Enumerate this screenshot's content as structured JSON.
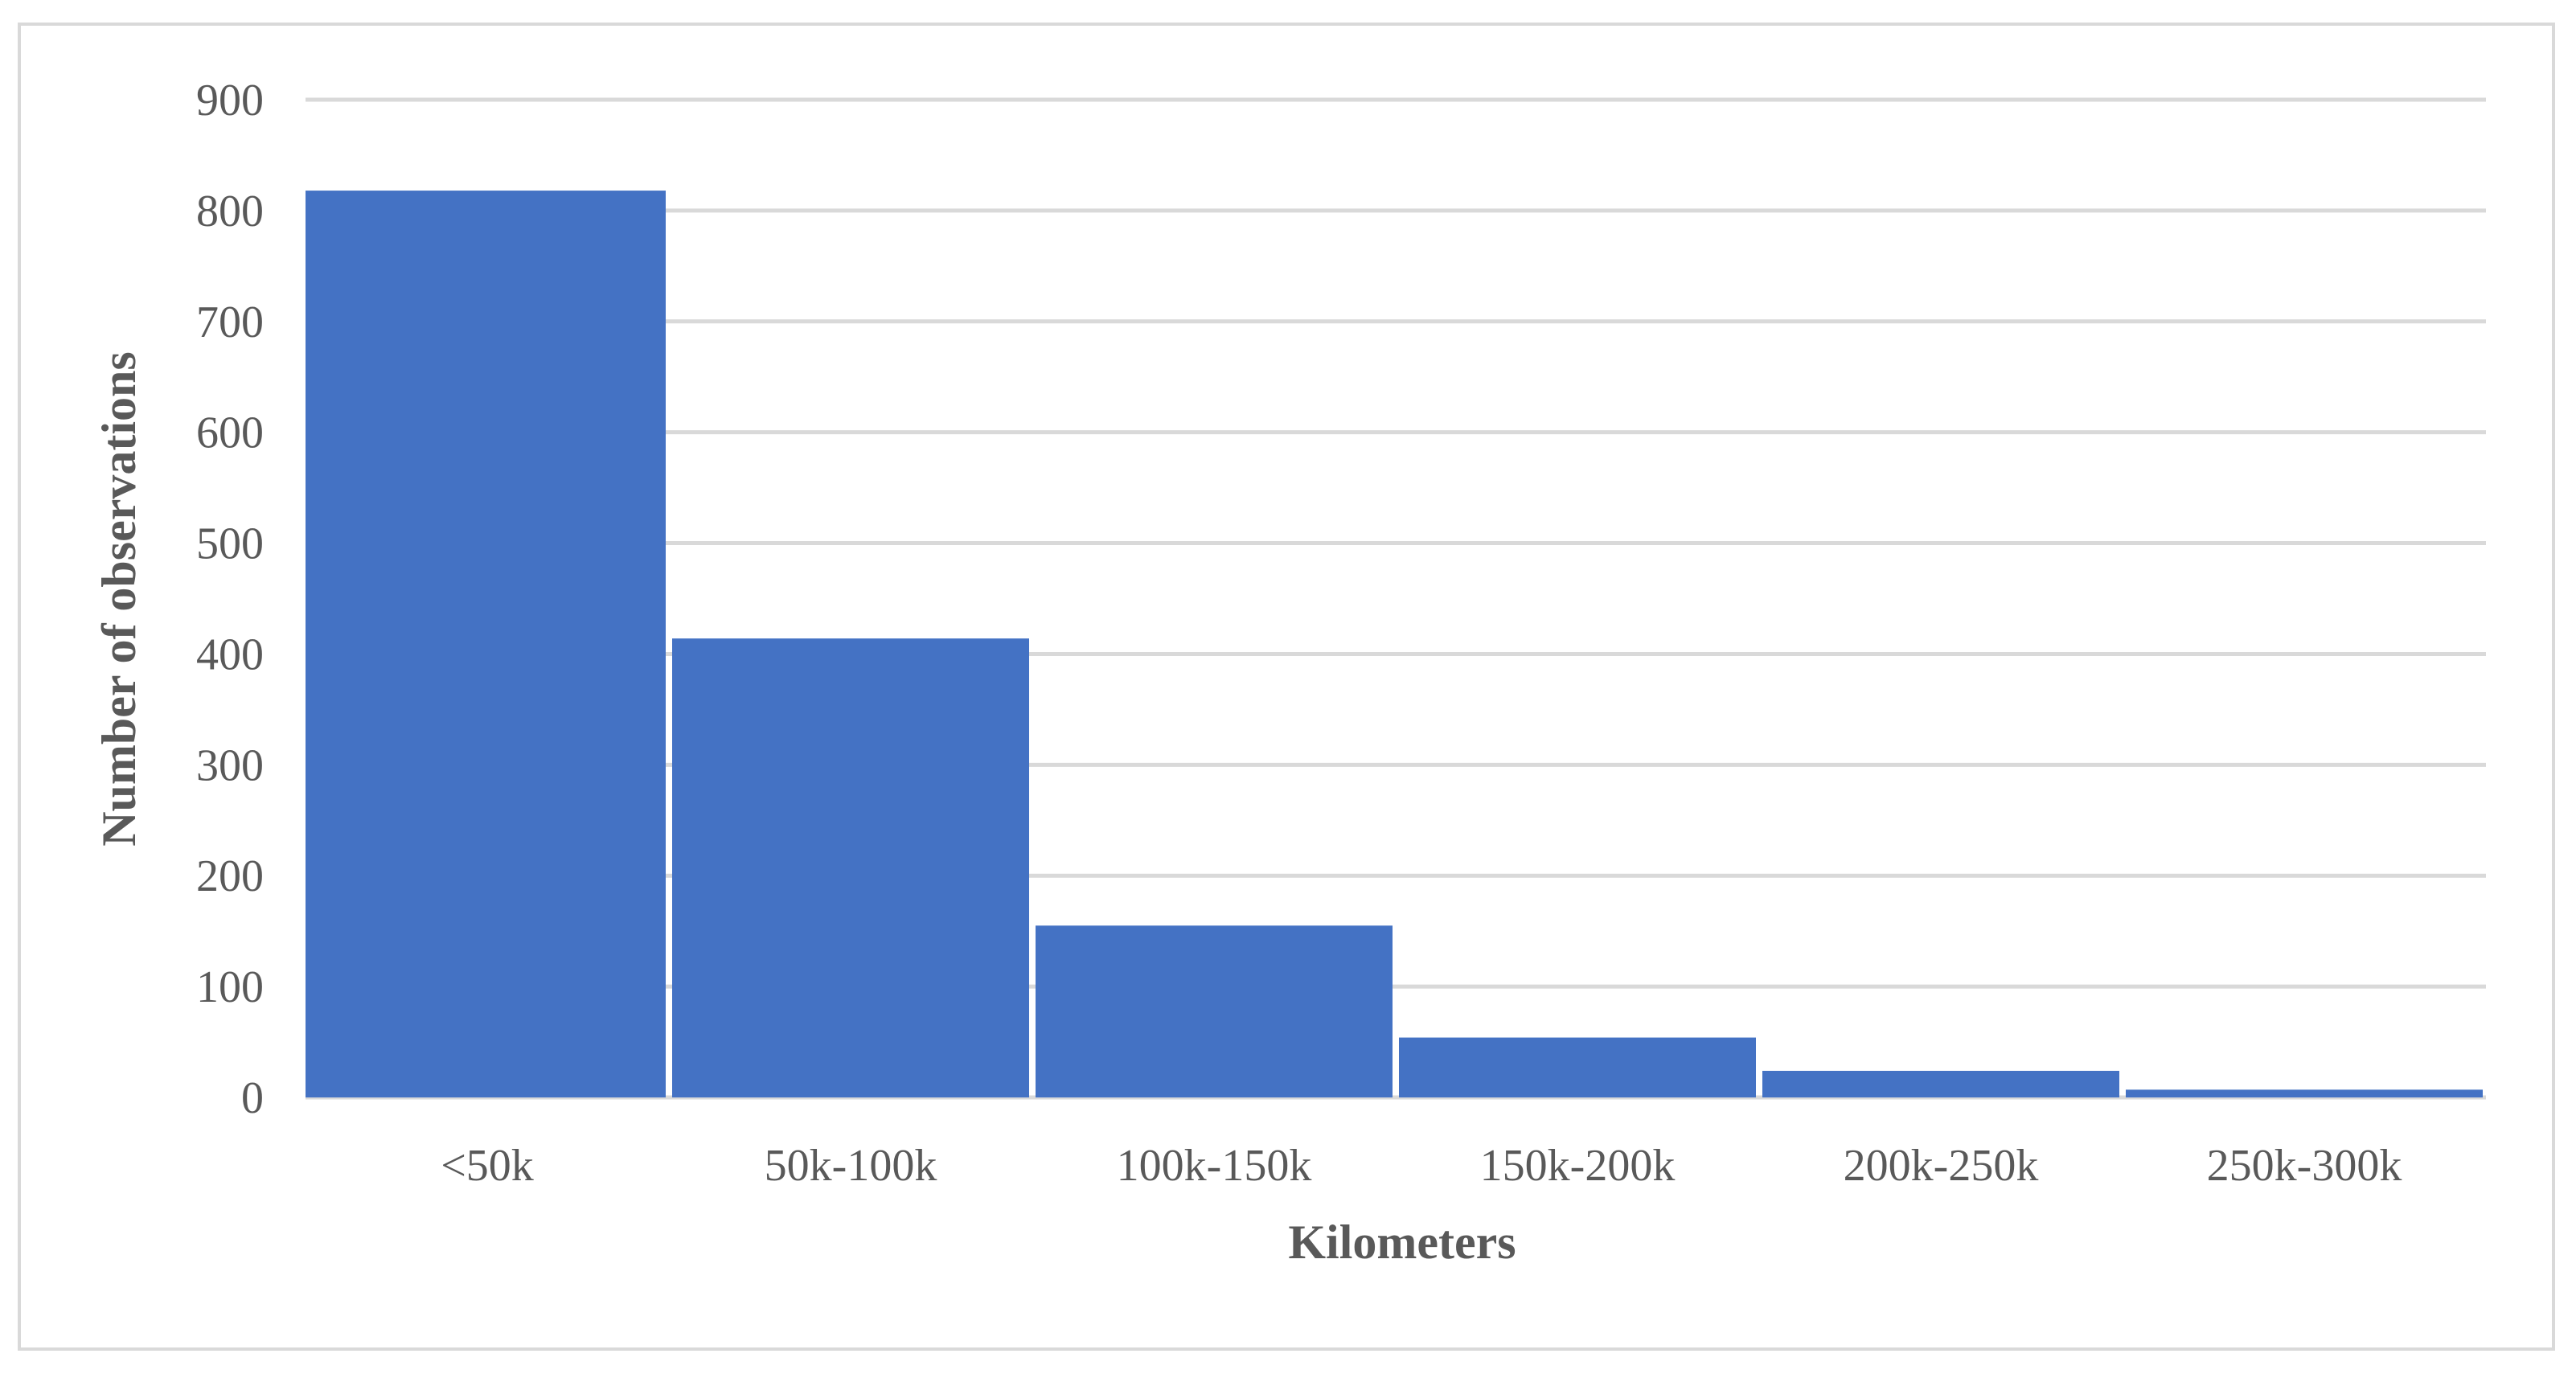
{
  "chart_data": {
    "type": "bar",
    "title": "",
    "xlabel": "Kilometers",
    "ylabel": "Number of observations",
    "categories": [
      "<50k",
      "50k-100k",
      "100k-150k",
      "150k-200k",
      "200k-250k",
      "250k-300k"
    ],
    "values": [
      818,
      414,
      155,
      54,
      24,
      7
    ],
    "ylim": [
      0,
      900
    ],
    "yticks": [
      "0",
      "100",
      "200",
      "300",
      "400",
      "500",
      "600",
      "700",
      "800",
      "900"
    ],
    "grid": true,
    "legend": "none",
    "colors": {
      "bar": "#4472C4",
      "grid": "#d9d9d9",
      "text": "#595959",
      "frame": "#d9d9d9"
    }
  }
}
